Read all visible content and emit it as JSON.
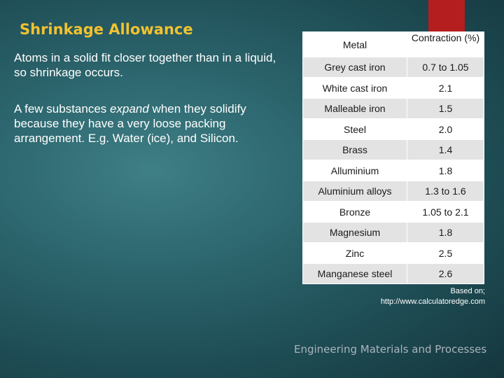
{
  "slide": {
    "title": "Shrinkage Allowance",
    "para1": "Atoms in a solid fit closer together than in a liquid, so shrinkage occurs.",
    "para2": {
      "before": "A few substances ",
      "emphasis": "expand",
      "after": " when they solidify because they have a very loose packing arrangement. E.g. Water (ice), and Silicon."
    },
    "credit": [
      "Based on;",
      "http://www.calculatoredge.com"
    ],
    "footer": "Engineering Materials and Processes",
    "accent_color": "#b51e1e",
    "title_color": "#f2c230"
  },
  "table": {
    "headers": [
      "Metal",
      "Contraction (%)"
    ],
    "rows": [
      [
        "Grey cast iron",
        "0.7 to 1.05"
      ],
      [
        "White cast iron",
        "2.1"
      ],
      [
        "Malleable iron",
        "1.5"
      ],
      [
        "Steel",
        "2.0"
      ],
      [
        "Brass",
        "1.4"
      ],
      [
        "Alluminium",
        "1.8"
      ],
      [
        "Aluminium alloys",
        "1.3 to 1.6"
      ],
      [
        "Bronze",
        "1.05 to 2.1"
      ],
      [
        "Magnesium",
        "1.8"
      ],
      [
        "Zinc",
        "2.5"
      ],
      [
        "Manganese steel",
        "2.6"
      ]
    ]
  }
}
